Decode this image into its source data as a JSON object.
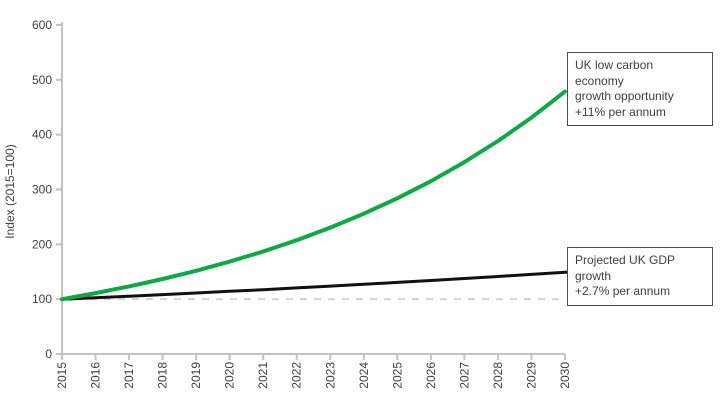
{
  "chart_data": {
    "type": "line",
    "title": "",
    "xlabel": "",
    "ylabel": "Index (2015=100)",
    "x": [
      2015,
      2016,
      2017,
      2018,
      2019,
      2020,
      2021,
      2022,
      2023,
      2024,
      2025,
      2026,
      2027,
      2028,
      2029,
      2030
    ],
    "y_ticks": [
      0,
      100,
      200,
      300,
      400,
      500,
      600
    ],
    "ylim": [
      0,
      600
    ],
    "grid": false,
    "legend_position": "none",
    "baseline": {
      "value": 100,
      "style": "dashed",
      "color": "#d2d2d2"
    },
    "axis_color": "#c2c2c2",
    "series": [
      {
        "name": "UK low carbon economy growth opportunity",
        "rate_label": "+11% per annum",
        "color": "#0caa44",
        "stroke_width": 4,
        "values": [
          100,
          111,
          123.2,
          136.8,
          151.8,
          168.5,
          187.0,
          207.6,
          230.5,
          255.8,
          283.9,
          315.2,
          349.9,
          388.3,
          431.1,
          478.5
        ]
      },
      {
        "name": "Projected UK GDP growth",
        "rate_label": "+2.7% per annum",
        "color": "#111111",
        "stroke_width": 3,
        "values": [
          100,
          102.7,
          105.5,
          108.3,
          111.2,
          114.3,
          117.3,
          120.5,
          123.8,
          127.1,
          130.5,
          134.1,
          137.7,
          141.4,
          145.2,
          149.1
        ]
      }
    ]
  },
  "annotations": {
    "low_carbon_box": "UK low carbon economy\ngrowth opportunity\n+11% per annum",
    "gdp_box": "Projected UK GDP growth\n+2.7% per annum"
  }
}
